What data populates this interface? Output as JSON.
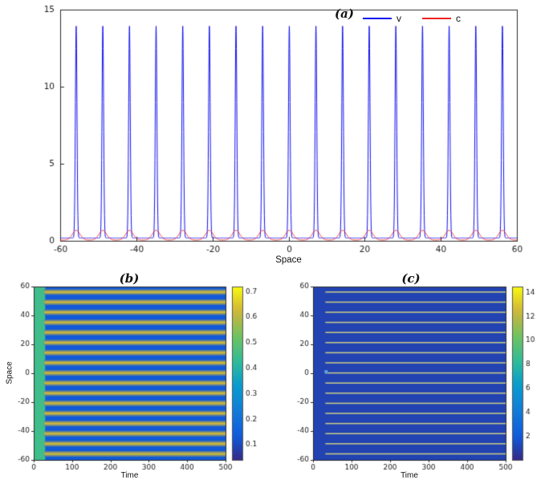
{
  "chart_data": [
    {
      "type": "line",
      "label": "(a)",
      "xlabel": "Space",
      "xlim": [
        -60,
        60
      ],
      "ylim": [
        0,
        15
      ],
      "xticks": [
        -60,
        -40,
        -20,
        0,
        20,
        40,
        60
      ],
      "yticks": [
        0,
        5,
        10,
        15
      ],
      "spike_positions": [
        -55.8,
        -48.8,
        -41.8,
        -34.8,
        -27.8,
        -20.8,
        -13.8,
        -6.8,
        0.2,
        7.2,
        14.2,
        21.2,
        28.2,
        35.2,
        42.2,
        49.2,
        56.2
      ],
      "series": [
        {
          "name": "v",
          "color": "#1010ee",
          "baseline": 0.18,
          "peak": 13.75,
          "width": 0.3
        },
        {
          "name": "c",
          "color": "#ee2222",
          "baseline": 0.05,
          "peak": 0.63,
          "width": 1.4
        }
      ],
      "legend": {
        "position": "top-right",
        "entries": [
          {
            "label": "v",
            "color": "#1010ee"
          },
          {
            "label": "c",
            "color": "#ee2222"
          }
        ]
      }
    },
    {
      "type": "heatmap",
      "label": "(b)",
      "xlabel": "Time",
      "ylabel": "Space",
      "xlim": [
        0,
        500
      ],
      "ylim": [
        -60,
        60
      ],
      "xticks": [
        0,
        100,
        200,
        300,
        400,
        500
      ],
      "yticks": [
        -60,
        -40,
        -20,
        0,
        20,
        40,
        60
      ],
      "colorbar": {
        "vmin": 0.04,
        "vmax": 0.72,
        "ticks": [
          0.1,
          0.2,
          0.3,
          0.4,
          0.5,
          0.6,
          0.7
        ]
      },
      "background_value": 0.13,
      "initial_band": {
        "t_start": 0,
        "t_end": 30,
        "value": 0.45
      },
      "stripe_start_time": 28,
      "stripe_peak_value": 0.62,
      "stripe_positions": [
        -55.8,
        -48.8,
        -41.8,
        -34.8,
        -27.8,
        -20.8,
        -13.8,
        -6.8,
        0.2,
        7.2,
        14.2,
        21.2,
        28.2,
        35.2,
        42.2,
        49.2,
        56.2
      ]
    },
    {
      "type": "heatmap",
      "label": "(c)",
      "xlabel": "Time",
      "ylabel": "",
      "xlim": [
        0,
        500
      ],
      "ylim": [
        -60,
        60
      ],
      "xticks": [
        0,
        100,
        200,
        300,
        400,
        500
      ],
      "yticks": [
        -60,
        -40,
        -20,
        0,
        20,
        40,
        60
      ],
      "colorbar": {
        "vmin": 0,
        "vmax": 14.5,
        "ticks": [
          2,
          4,
          6,
          8,
          10,
          12,
          14
        ]
      },
      "background_value": 1.0,
      "stripe_start_time": 32,
      "stripe_peak_value": 13.8,
      "stripe_positions": [
        -55.8,
        -48.8,
        -41.8,
        -34.8,
        -27.8,
        -20.8,
        -13.8,
        -6.8,
        0.2,
        7.2,
        14.2,
        21.2,
        28.2,
        35.2,
        42.2,
        49.2,
        56.2
      ],
      "marker": {
        "time": 34,
        "space": 1,
        "color": "#5aa7e0"
      }
    }
  ]
}
